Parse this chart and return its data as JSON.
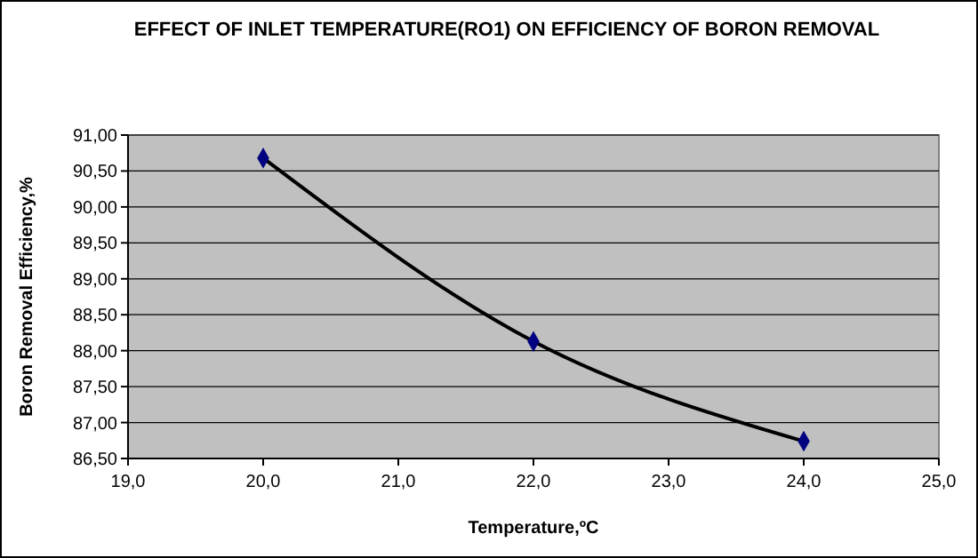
{
  "chart_data": {
    "type": "line",
    "title": "EFFECT OF INLET TEMPERATURE(RO1) ON EFFICIENCY OF BORON REMOVAL",
    "xlabel": "Temperature,ºC",
    "ylabel": "Boron Removal Efficiency,%",
    "x": [
      20,
      22,
      24
    ],
    "series": [
      {
        "color": "#000000",
        "values": [
          90.68,
          88.13,
          86.74
        ]
      }
    ],
    "marker": "diamond",
    "grid": "y",
    "xlim": [
      19,
      25
    ],
    "xticks": [
      {
        "value": 19,
        "label": "19,0"
      },
      {
        "value": 20,
        "label": "20,0"
      },
      {
        "value": 21,
        "label": "21,0"
      },
      {
        "value": 22,
        "label": "22,0"
      },
      {
        "value": 23,
        "label": "23,0"
      },
      {
        "value": 24,
        "label": "24,0"
      },
      {
        "value": 25,
        "label": "25,0"
      }
    ],
    "ylim": [
      86.5,
      91
    ],
    "yticks": [
      {
        "value": 86.5,
        "label": "86,50"
      },
      {
        "value": 87,
        "label": "87,00"
      },
      {
        "value": 87.5,
        "label": "87,50"
      },
      {
        "value": 88,
        "label": "88,00"
      },
      {
        "value": 88.5,
        "label": "88,50"
      },
      {
        "value": 89,
        "label": "89,00"
      },
      {
        "value": 89.5,
        "label": "89,50"
      },
      {
        "value": 90,
        "label": "90,00"
      },
      {
        "value": 90.5,
        "label": "90,50"
      },
      {
        "value": 91,
        "label": "91,00"
      }
    ]
  }
}
